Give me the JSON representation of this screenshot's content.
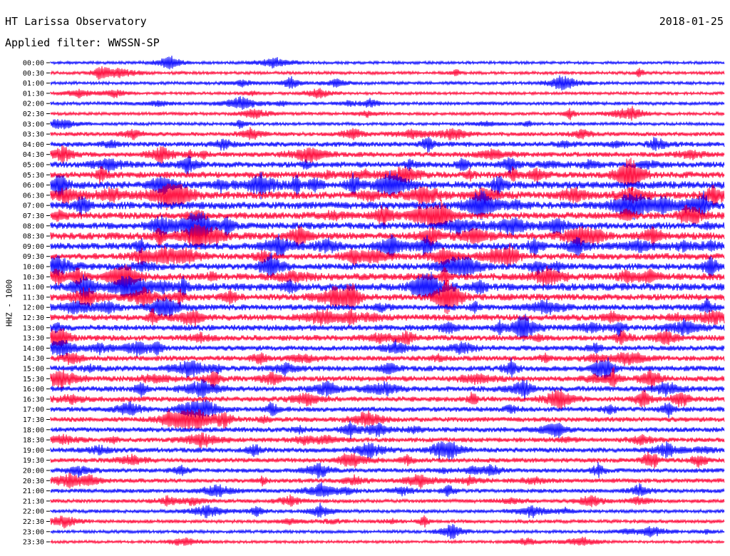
{
  "header": {
    "station": "HT Larissa Observatory",
    "date": "2018-01-25",
    "filter": "Applied filter: WWSSN-SP"
  },
  "chart_data": {
    "type": "line",
    "channel_label": "HHZ - 1000",
    "colors": [
      "#0000ff",
      "#ff0033"
    ],
    "grid": false,
    "row_minutes": 30,
    "rows": [
      {
        "time": "00:00",
        "activity": 0.25
      },
      {
        "time": "00:30",
        "activity": 0.3
      },
      {
        "time": "01:00",
        "activity": 0.3
      },
      {
        "time": "01:30",
        "activity": 0.25
      },
      {
        "time": "02:00",
        "activity": 0.35
      },
      {
        "time": "02:30",
        "activity": 0.3
      },
      {
        "time": "03:00",
        "activity": 0.3
      },
      {
        "time": "03:30",
        "activity": 0.45
      },
      {
        "time": "04:00",
        "activity": 0.6
      },
      {
        "time": "04:30",
        "activity": 0.6
      },
      {
        "time": "05:00",
        "activity": 0.75
      },
      {
        "time": "05:30",
        "activity": 0.85
      },
      {
        "time": "06:00",
        "activity": 1.0
      },
      {
        "time": "06:30",
        "activity": 1.0
      },
      {
        "time": "07:00",
        "activity": 1.0
      },
      {
        "time": "07:30",
        "activity": 0.9
      },
      {
        "time": "08:00",
        "activity": 0.9
      },
      {
        "time": "08:30",
        "activity": 0.95
      },
      {
        "time": "09:00",
        "activity": 0.9
      },
      {
        "time": "09:30",
        "activity": 0.85
      },
      {
        "time": "10:00",
        "activity": 0.85
      },
      {
        "time": "10:30",
        "activity": 0.95
      },
      {
        "time": "11:00",
        "activity": 1.0
      },
      {
        "time": "11:30",
        "activity": 0.85
      },
      {
        "time": "12:00",
        "activity": 0.75
      },
      {
        "time": "12:30",
        "activity": 0.8
      },
      {
        "time": "13:00",
        "activity": 0.75
      },
      {
        "time": "13:30",
        "activity": 0.7
      },
      {
        "time": "14:00",
        "activity": 0.65
      },
      {
        "time": "14:30",
        "activity": 0.65
      },
      {
        "time": "15:00",
        "activity": 0.7
      },
      {
        "time": "15:30",
        "activity": 0.7
      },
      {
        "time": "16:00",
        "activity": 0.7
      },
      {
        "time": "16:30",
        "activity": 0.65
      },
      {
        "time": "17:00",
        "activity": 0.6
      },
      {
        "time": "17:30",
        "activity": 0.6
      },
      {
        "time": "18:00",
        "activity": 0.6
      },
      {
        "time": "18:30",
        "activity": 0.55
      },
      {
        "time": "19:00",
        "activity": 0.6
      },
      {
        "time": "19:30",
        "activity": 0.55
      },
      {
        "time": "20:00",
        "activity": 0.5
      },
      {
        "time": "20:30",
        "activity": 0.5
      },
      {
        "time": "21:00",
        "activity": 0.45
      },
      {
        "time": "21:30",
        "activity": 0.4
      },
      {
        "time": "22:00",
        "activity": 0.35
      },
      {
        "time": "22:30",
        "activity": 0.35
      },
      {
        "time": "23:00",
        "activity": 0.3
      },
      {
        "time": "23:30",
        "activity": 0.25
      }
    ]
  }
}
